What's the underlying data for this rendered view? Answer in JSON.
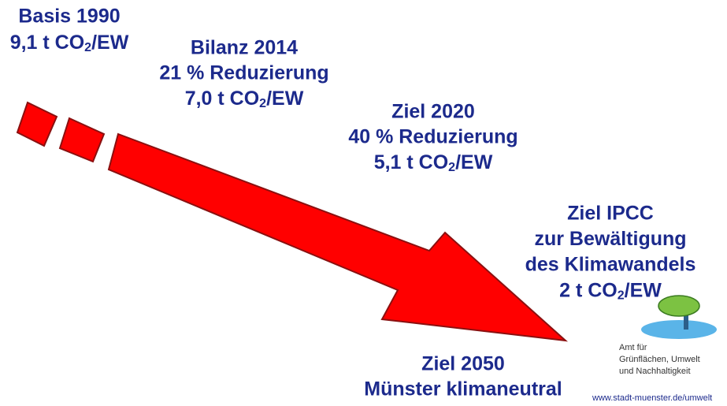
{
  "blocks": [
    {
      "lines": [
        "Basis 1990",
        {
          "pre": "9,1 t CO",
          "sub": "2",
          "post": "/EW"
        }
      ]
    },
    {
      "lines": [
        "Bilanz 2014",
        "21 % Reduzierung",
        {
          "pre": "7,0 t CO",
          "sub": "2",
          "post": "/EW"
        }
      ]
    },
    {
      "lines": [
        "Ziel 2020",
        "40 % Reduzierung",
        {
          "pre": "5,1 t CO",
          "sub": "2",
          "post": "/EW"
        }
      ]
    },
    {
      "lines": [
        "Ziel IPCC",
        "zur Bewältigung",
        "des Klimawandels",
        {
          "pre": "2 t CO",
          "sub": "2",
          "post": "/EW"
        }
      ]
    },
    {
      "lines": [
        "Ziel 2050",
        "Münster klimaneutral"
      ]
    }
  ],
  "logo": {
    "lines": [
      "Amt für",
      "Grünflächen, Umwelt",
      "und Nachhaltigkeit"
    ],
    "url": "www.stadt-muenster.de/umwelt"
  }
}
